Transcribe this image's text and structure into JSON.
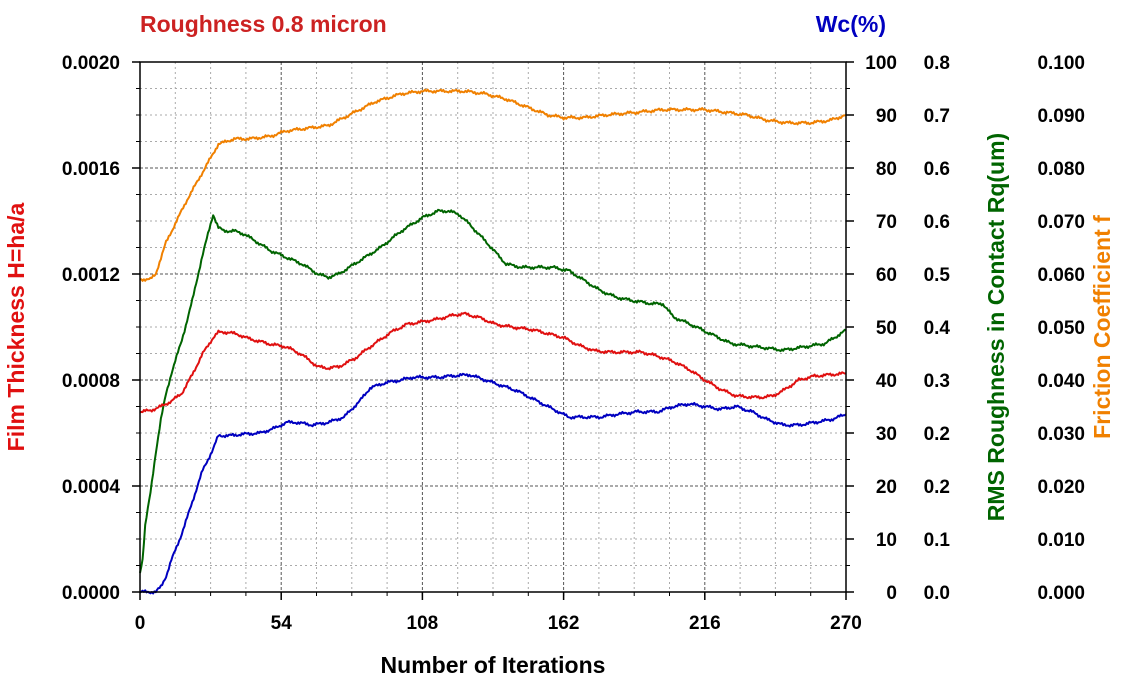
{
  "chart_data": {
    "type": "line",
    "title": "Roughness 0.8 micron",
    "top_right_label": "Wc(%)",
    "xlabel": "Number of Iterations",
    "xlim": [
      0,
      270
    ],
    "xticks": [
      "0",
      "54",
      "108",
      "162",
      "216",
      "270"
    ],
    "grid": true,
    "axes": {
      "left": {
        "label": "Film Thickness H=ha/a",
        "color": "#e01010",
        "min": 0,
        "max": 0.002,
        "ticks": [
          "0.0000",
          "0.0004",
          "0.0008",
          "0.0012",
          "0.0016",
          "0.0020"
        ]
      },
      "right1": {
        "label": "",
        "color": "#0000c0",
        "min": 0,
        "max": 100,
        "ticks": [
          "0",
          "10",
          "20",
          "30",
          "40",
          "50",
          "60",
          "70",
          "80",
          "90",
          "100"
        ]
      },
      "right2": {
        "label": "RMS Roughness in Contact Rq(um)",
        "color": "#006400",
        "min": 0,
        "max": 0.8,
        "ticks": [
          "0.0",
          "0.1",
          "0.2",
          "0.2",
          "0.3",
          "0.4",
          "0.5",
          "0.6",
          "0.6",
          "0.7",
          "0.8"
        ]
      },
      "right3": {
        "label": "Friction Coefficient f",
        "color": "#f08000",
        "min": 0,
        "max": 0.1,
        "ticks": [
          "0.000",
          "0.010",
          "0.020",
          "0.030",
          "0.040",
          "0.050",
          "0.060",
          "0.070",
          "0.080",
          "0.090",
          "0.100"
        ]
      }
    },
    "series": [
      {
        "axis": "right3",
        "color": "#f08000",
        "x": [
          0,
          4,
          6,
          8,
          10,
          14,
          18,
          22,
          26,
          30,
          36,
          42,
          50,
          56,
          64,
          72,
          80,
          90,
          100,
          108,
          116,
          124,
          132,
          140,
          148,
          156,
          162,
          170,
          178,
          190,
          200,
          208,
          216,
          224,
          232,
          240,
          248,
          256,
          264,
          270
        ],
        "y": [
          0.059,
          0.059,
          0.06,
          0.063,
          0.066,
          0.07,
          0.074,
          0.0775,
          0.081,
          0.0845,
          0.0855,
          0.0855,
          0.086,
          0.087,
          0.0875,
          0.088,
          0.09,
          0.0925,
          0.094,
          0.0945,
          0.0945,
          0.0945,
          0.094,
          0.093,
          0.0915,
          0.09,
          0.0895,
          0.0895,
          0.09,
          0.0905,
          0.091,
          0.091,
          0.091,
          0.0905,
          0.09,
          0.089,
          0.0885,
          0.0885,
          0.089,
          0.09
        ]
      },
      {
        "axis": "right2",
        "color": "#006400",
        "x": [
          0,
          1,
          2,
          4,
          6,
          8,
          10,
          12,
          16,
          20,
          24,
          28,
          30,
          32,
          36,
          40,
          44,
          50,
          56,
          62,
          68,
          72,
          76,
          84,
          92,
          100,
          108,
          114,
          118,
          122,
          126,
          132,
          140,
          146,
          152,
          158,
          164,
          170,
          176,
          182,
          188,
          196,
          200,
          204,
          210,
          218,
          226,
          236,
          246,
          254,
          262,
          270
        ],
        "y": [
          0.03,
          0.05,
          0.1,
          0.15,
          0.21,
          0.26,
          0.3,
          0.33,
          0.38,
          0.44,
          0.51,
          0.57,
          0.55,
          0.545,
          0.545,
          0.54,
          0.53,
          0.515,
          0.505,
          0.495,
          0.48,
          0.475,
          0.48,
          0.5,
          0.52,
          0.545,
          0.565,
          0.575,
          0.575,
          0.57,
          0.555,
          0.53,
          0.495,
          0.49,
          0.49,
          0.49,
          0.485,
          0.47,
          0.455,
          0.445,
          0.44,
          0.435,
          0.435,
          0.415,
          0.405,
          0.39,
          0.375,
          0.37,
          0.365,
          0.37,
          0.375,
          0.395
        ]
      },
      {
        "axis": "left",
        "color": "#e01010",
        "x": [
          0,
          4,
          8,
          12,
          16,
          20,
          24,
          28,
          30,
          34,
          38,
          42,
          46,
          50,
          56,
          62,
          68,
          72,
          76,
          82,
          88,
          96,
          102,
          108,
          114,
          120,
          124,
          130,
          136,
          142,
          150,
          158,
          162,
          168,
          174,
          180,
          186,
          192,
          198,
          204,
          210,
          216,
          222,
          228,
          234,
          238,
          242,
          246,
          252,
          258,
          264,
          270
        ],
        "y": [
          0.00068,
          0.000685,
          0.0007,
          0.00072,
          0.00075,
          0.00082,
          0.0009,
          0.00096,
          0.00098,
          0.00098,
          0.00097,
          0.000955,
          0.000945,
          0.000935,
          0.000925,
          0.000895,
          0.00085,
          0.000845,
          0.00085,
          0.00088,
          0.000925,
          0.00098,
          0.00101,
          0.00102,
          0.00103,
          0.001045,
          0.00105,
          0.001035,
          0.00101,
          0.001,
          0.00099,
          0.00097,
          0.00096,
          0.00093,
          0.00091,
          0.000905,
          0.000905,
          0.000905,
          0.00089,
          0.00087,
          0.00084,
          0.0008,
          0.000765,
          0.00074,
          0.000735,
          0.000735,
          0.00074,
          0.00076,
          0.0008,
          0.000815,
          0.00082,
          0.000825
        ]
      },
      {
        "axis": "right1",
        "color": "#0000c0",
        "x": [
          0,
          4,
          6,
          8,
          10,
          12,
          16,
          20,
          24,
          28,
          30,
          34,
          40,
          46,
          52,
          56,
          60,
          66,
          72,
          78,
          84,
          88,
          94,
          100,
          104,
          108,
          114,
          120,
          126,
          132,
          138,
          144,
          150,
          156,
          160,
          164,
          170,
          176,
          182,
          190,
          198,
          204,
          210,
          216,
          222,
          228,
          234,
          240,
          246,
          252,
          258,
          264,
          270
        ],
        "y": [
          0,
          0,
          0,
          1,
          3,
          6,
          11,
          17,
          23,
          27,
          29.5,
          29.5,
          29.8,
          30,
          31,
          32,
          32,
          31.5,
          32,
          33,
          36,
          38.5,
          39.5,
          40,
          40.5,
          40.5,
          40.5,
          40.8,
          41,
          40,
          39,
          38,
          36.5,
          35,
          34,
          33,
          33,
          33,
          33.5,
          34,
          34,
          35,
          35.5,
          35,
          34.5,
          35,
          34,
          32.5,
          31.5,
          31.5,
          32,
          32.5,
          33.5
        ]
      }
    ]
  }
}
